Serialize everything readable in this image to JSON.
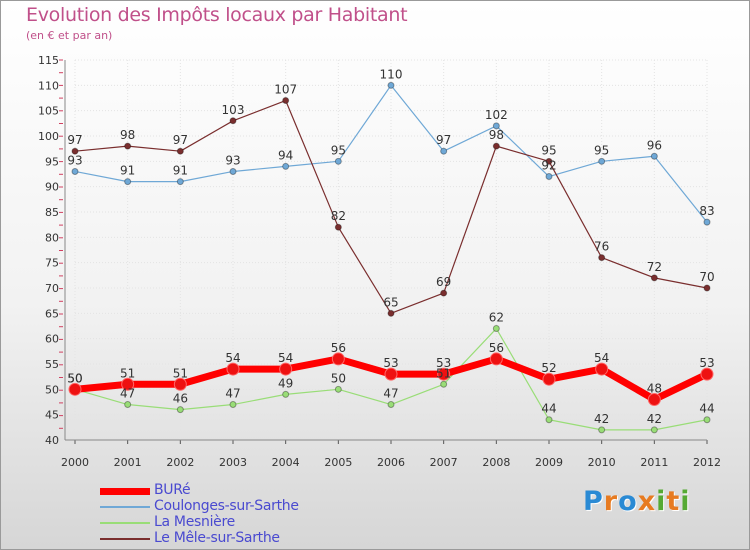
{
  "chart_data": {
    "type": "line",
    "title": "Evolution des Impôts locaux par Habitant",
    "subtitle": "(en € et par an)",
    "xlabel": "",
    "ylabel": "",
    "ylim": [
      40,
      115
    ],
    "y_ticks": [
      "40",
      "45",
      "50",
      "55",
      "60",
      "65",
      "70",
      "75",
      "80",
      "85",
      "90",
      "95",
      "100",
      "105",
      "110",
      "115"
    ],
    "categories": [
      "2000",
      "2001",
      "2002",
      "2003",
      "2004",
      "2005",
      "2006",
      "2007",
      "2008",
      "2009",
      "2010",
      "2011",
      "2012"
    ],
    "grid": true,
    "legend_position": "bottom-left",
    "series": [
      {
        "name": "BURé",
        "color": "#ff0000",
        "values": [
          50,
          51,
          51,
          54,
          54,
          56,
          53,
          53,
          56,
          52,
          54,
          48,
          53
        ]
      },
      {
        "name": "Coulonges-sur-Sarthe",
        "color": "#6fa8d6",
        "values": [
          93,
          91,
          91,
          93,
          94,
          95,
          110,
          97,
          102,
          92,
          95,
          96,
          83
        ]
      },
      {
        "name": "La Mesnière",
        "color": "#99dd77",
        "values": [
          50,
          47,
          46,
          47,
          49,
          50,
          47,
          51,
          62,
          44,
          42,
          42,
          44
        ]
      },
      {
        "name": "Le Mêle-sur-Sarthe",
        "color": "#7a2e2e",
        "values": [
          97,
          98,
          97,
          103,
          107,
          82,
          65,
          69,
          98,
          95,
          76,
          72,
          70
        ]
      }
    ]
  },
  "logo": {
    "letters": [
      "P",
      "r",
      "o",
      "x",
      "i",
      "t",
      "i"
    ],
    "colors": [
      "#2a8ad4",
      "#e77b21",
      "#2a8ad4",
      "#e77b21",
      "#55aa33",
      "#e77b21",
      "#55aa33"
    ]
  }
}
